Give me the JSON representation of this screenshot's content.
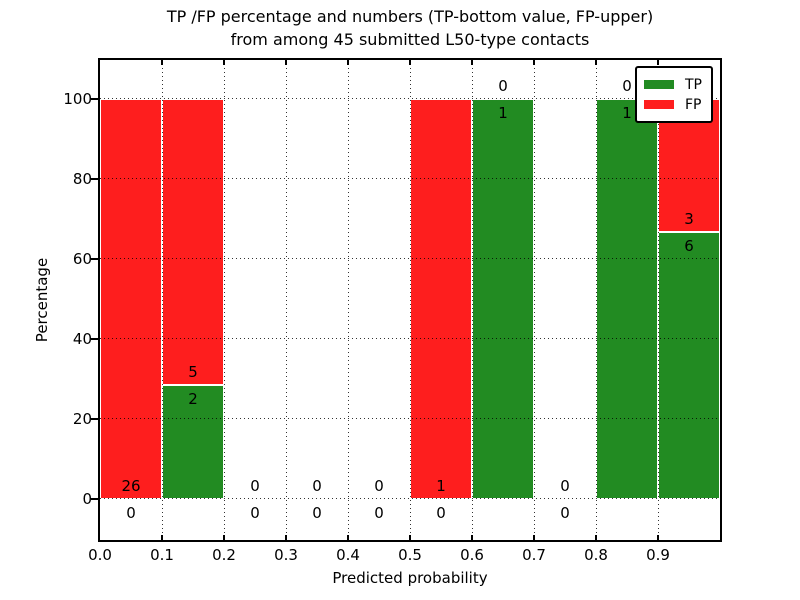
{
  "figure": {
    "background": "#ffffff"
  },
  "chart_data": {
    "type": "bar",
    "variant": "stacked-percentage",
    "title_lines": [
      "TP /FP percentage and numbers (TP-bottom value, FP-upper)",
      "from among 45 submitted L50-type contacts"
    ],
    "xlabel": "Predicted probability",
    "ylabel": "Percentage",
    "total_contacts": 45,
    "x_ticks": [
      "0.0",
      "0.1",
      "0.2",
      "0.3",
      "0.4",
      "0.5",
      "0.6",
      "0.7",
      "0.8",
      "0.9"
    ],
    "x_tick_values": [
      0,
      0.1,
      0.2,
      0.3,
      0.4,
      0.5,
      0.6,
      0.7,
      0.8,
      0.9
    ],
    "y_ticks": [
      0,
      20,
      40,
      60,
      80,
      100
    ],
    "xlim": [
      0,
      1
    ],
    "ylim": [
      -10.3,
      109.7
    ],
    "grid": "dotted-black",
    "colors": {
      "tp": "#228b22",
      "fp": "#fe1e1e",
      "spine": "#000000"
    },
    "legend": {
      "position": "upper-right",
      "entries": [
        {
          "label": "TP",
          "color": "#228b22"
        },
        {
          "label": "FP",
          "color": "#fe1e1e"
        }
      ]
    },
    "bins": [
      {
        "range": [
          0.0,
          0.1
        ],
        "tp": 0,
        "fp": 26,
        "tp_pct": 0,
        "fp_pct": 100
      },
      {
        "range": [
          0.1,
          0.2
        ],
        "tp": 2,
        "fp": 5,
        "tp_pct": 28.57,
        "fp_pct": 71.43
      },
      {
        "range": [
          0.2,
          0.3
        ],
        "tp": 0,
        "fp": 0,
        "tp_pct": 0,
        "fp_pct": 0
      },
      {
        "range": [
          0.3,
          0.4
        ],
        "tp": 0,
        "fp": 0,
        "tp_pct": 0,
        "fp_pct": 0
      },
      {
        "range": [
          0.4,
          0.5
        ],
        "tp": 0,
        "fp": 0,
        "tp_pct": 0,
        "fp_pct": 0
      },
      {
        "range": [
          0.5,
          0.6
        ],
        "tp": 0,
        "fp": 1,
        "tp_pct": 0,
        "fp_pct": 100
      },
      {
        "range": [
          0.6,
          0.7
        ],
        "tp": 1,
        "fp": 0,
        "tp_pct": 100,
        "fp_pct": 0
      },
      {
        "range": [
          0.7,
          0.8
        ],
        "tp": 0,
        "fp": 0,
        "tp_pct": 0,
        "fp_pct": 0
      },
      {
        "range": [
          0.8,
          0.9
        ],
        "tp": 1,
        "fp": 0,
        "tp_pct": 100,
        "fp_pct": 0
      },
      {
        "range": [
          0.9,
          1.0
        ],
        "tp": 6,
        "fp": 3,
        "tp_pct": 66.67,
        "fp_pct": 33.33
      }
    ]
  }
}
